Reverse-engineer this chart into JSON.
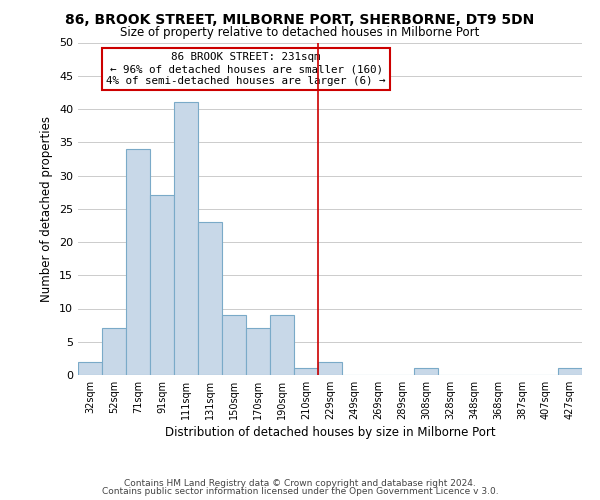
{
  "title": "86, BROOK STREET, MILBORNE PORT, SHERBORNE, DT9 5DN",
  "subtitle": "Size of property relative to detached houses in Milborne Port",
  "xlabel": "Distribution of detached houses by size in Milborne Port",
  "ylabel": "Number of detached properties",
  "bin_labels": [
    "32sqm",
    "52sqm",
    "71sqm",
    "91sqm",
    "111sqm",
    "131sqm",
    "150sqm",
    "170sqm",
    "190sqm",
    "210sqm",
    "229sqm",
    "249sqm",
    "269sqm",
    "289sqm",
    "308sqm",
    "328sqm",
    "348sqm",
    "368sqm",
    "387sqm",
    "407sqm",
    "427sqm"
  ],
  "bar_heights": [
    2,
    7,
    34,
    27,
    41,
    23,
    9,
    7,
    9,
    1,
    2,
    0,
    0,
    0,
    1,
    0,
    0,
    0,
    0,
    0,
    1
  ],
  "bar_color": "#c8d8e8",
  "bar_edge_color": "#7aaac8",
  "annotation_label": "86 BROOK STREET: 231sqm",
  "annotation_line1": "← 96% of detached houses are smaller (160)",
  "annotation_line2": "4% of semi-detached houses are larger (6) →",
  "annotation_box_edge": "#cc0000",
  "reference_line_color": "#cc0000",
  "ref_bin_index": 10,
  "ylim": [
    0,
    50
  ],
  "yticks": [
    0,
    5,
    10,
    15,
    20,
    25,
    30,
    35,
    40,
    45,
    50
  ],
  "footer1": "Contains HM Land Registry data © Crown copyright and database right 2024.",
  "footer2": "Contains public sector information licensed under the Open Government Licence v 3.0.",
  "background_color": "#ffffff",
  "grid_color": "#cccccc"
}
